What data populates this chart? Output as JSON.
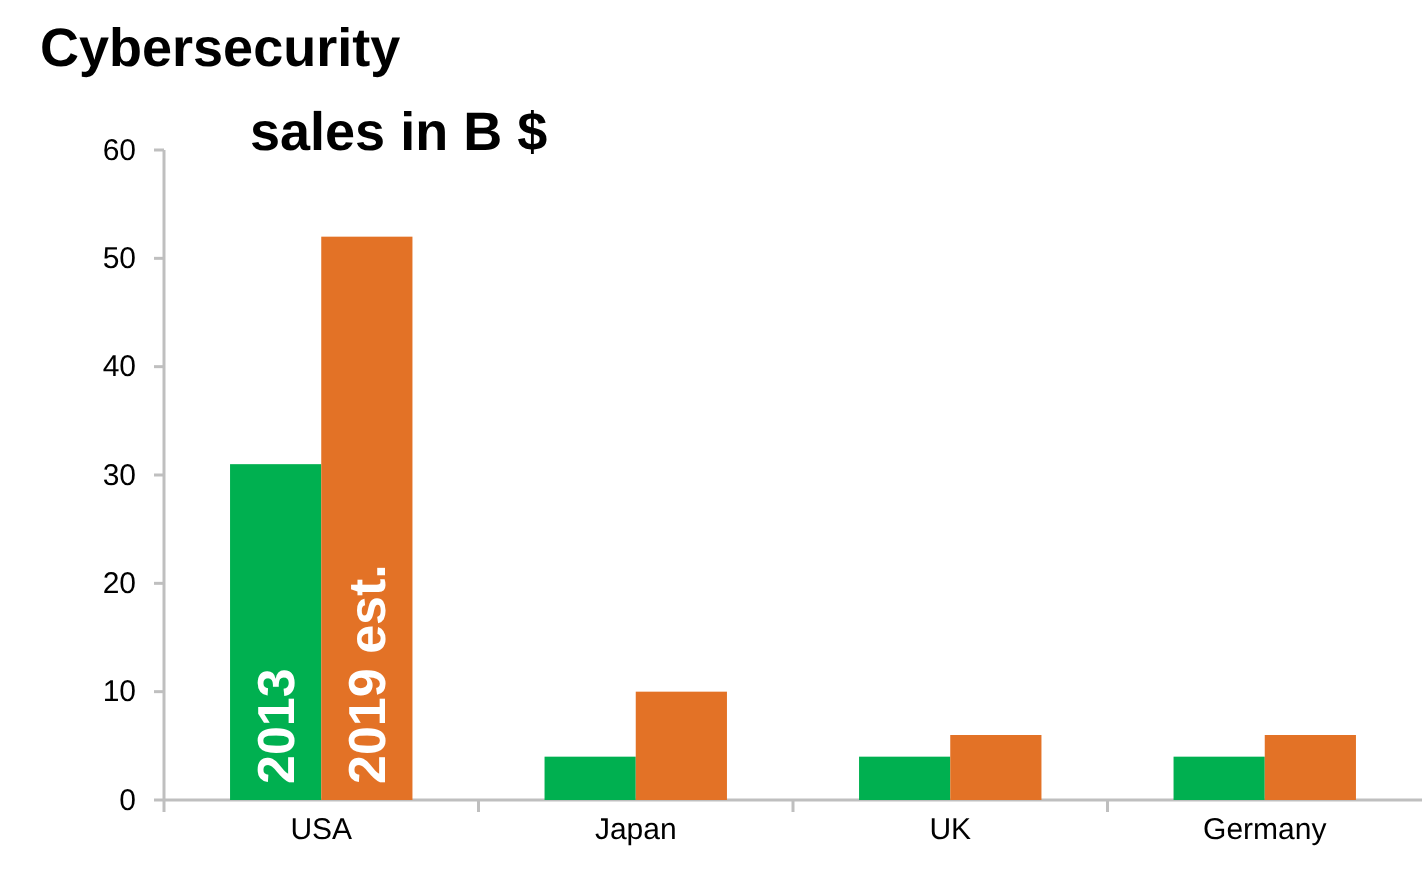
{
  "chart_data": {
    "type": "bar",
    "title": "Cybersecurity sales in B $",
    "categories": [
      "USA",
      "Japan",
      "UK",
      "Germany"
    ],
    "series": [
      {
        "name": "2013",
        "color": "#00b050",
        "values": [
          31,
          4,
          4,
          4
        ]
      },
      {
        "name": "2019 est.",
        "color": "#e37226",
        "values": [
          52,
          10,
          6,
          6
        ]
      }
    ],
    "ylim": [
      0,
      60
    ],
    "yticks": [
      0,
      10,
      20,
      30,
      40,
      50,
      60
    ],
    "grid": false,
    "legend": false
  }
}
